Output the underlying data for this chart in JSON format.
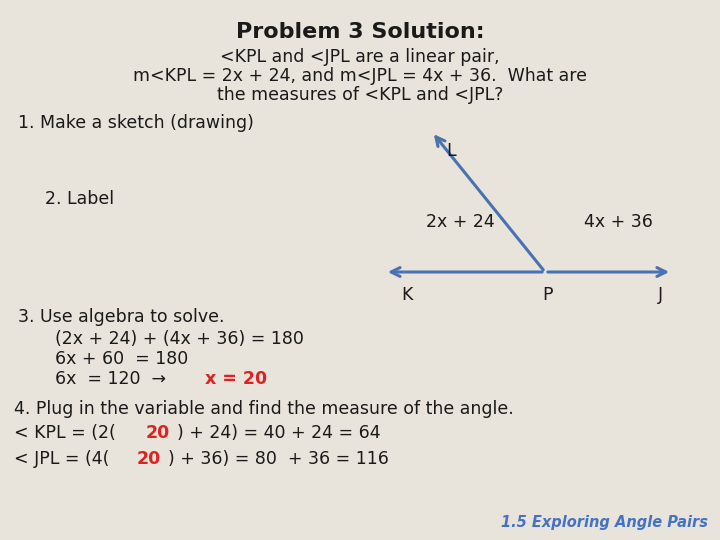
{
  "bg_color": "#e8e4dc",
  "title": "Problem 3 Solution:",
  "subtitle_line1": "<KPL and <JPL are a linear pair,",
  "subtitle_line2": "m<KPL = 2x + 24, and m<JPL = 4x + 36.  What are",
  "subtitle_line3": "the measures of <KPL and <JPL?",
  "step1": "1. Make a sketch (drawing)",
  "step2_label": "2. Label",
  "angle_left_label": "2x + 24",
  "angle_right_label": "4x + 36",
  "point_K": "K",
  "point_P": "P",
  "point_J": "J",
  "point_L": "L",
  "step3_title": "3. Use algebra to solve.",
  "step3_eq1": "(2x + 24) + (4x + 36) = 180",
  "step3_eq2": "6x + 60  = 180",
  "step3_eq3_black": "6x  = 120  → ",
  "step3_eq3_red": "x = 20",
  "step4_title": "4. Plug in the variable and find the measure of the angle.",
  "step4_kpl_a": "< KPL = (2(",
  "step4_kpl_red": "20",
  "step4_kpl_b": ") + 24) = 40 + 24 = 64",
  "step4_jpl_a": "< JPL = (4(",
  "step4_jpl_red": "20",
  "step4_jpl_b": ") + 36) = 80  + 36 = 116",
  "footer": "1.5 Exploring Angle Pairs",
  "arrow_color": "#4a72b0",
  "text_color": "#1a1a1a",
  "red_color": "#dd2222",
  "footer_color": "#4472c4",
  "title_fontsize": 16,
  "body_fontsize": 12.5
}
